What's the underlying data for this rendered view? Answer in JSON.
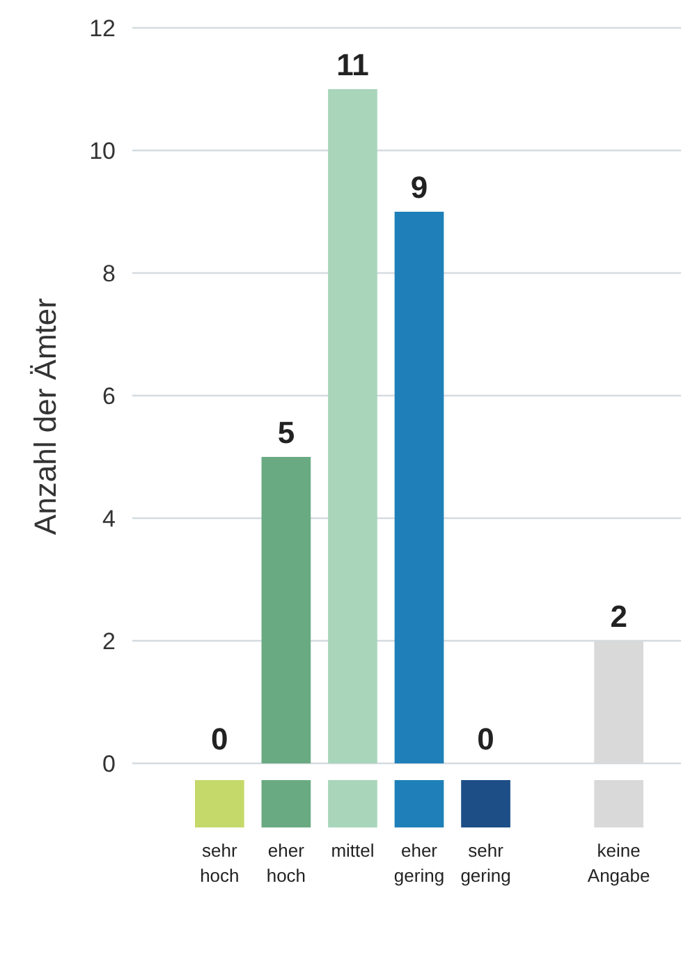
{
  "chart_data": {
    "type": "bar",
    "ylabel": "Anzahl der Ämter",
    "categories": [
      "sehr hoch",
      "eher hoch",
      "mittel",
      "eher gering",
      "sehr gering",
      null,
      "keine Angabe"
    ],
    "values": [
      0,
      5,
      11,
      9,
      0,
      null,
      2
    ],
    "colors": [
      "#c5d96a",
      "#6aaa82",
      "#a9d5bb",
      "#1f80b9",
      "#1d4e86",
      null,
      "#d9d9d9"
    ],
    "ylim": [
      0,
      12
    ],
    "yticks": [
      0,
      2,
      4,
      6,
      8,
      10,
      12
    ],
    "grid": "y",
    "data_labels": true
  }
}
